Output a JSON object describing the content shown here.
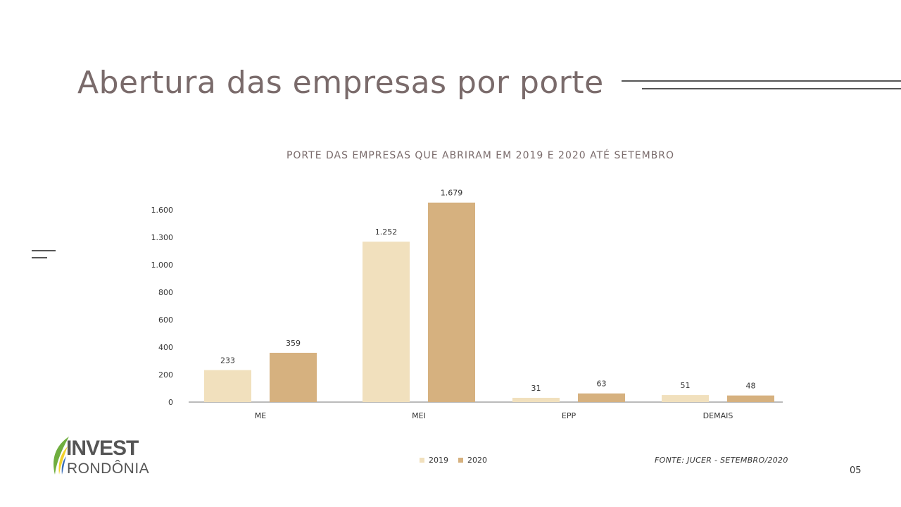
{
  "slide": {
    "title": "Abertura das empresas por porte",
    "page_number": "05",
    "source": "FONTE: JUCER - SETEMBRO/2020"
  },
  "logo": {
    "line1": "INVEST",
    "line2": "RONDÔNIA"
  },
  "colors": {
    "series_2019": "#f1e0bd",
    "series_2020": "#d6b17f",
    "title": "#7a6b6b"
  },
  "chart_data": {
    "type": "bar",
    "title": "PORTE DAS EMPRESAS QUE ABRIRAM EM 2019 E 2020 ATÉ SETEMBRO",
    "categories": [
      "ME",
      "MEI",
      "EPP",
      "DEMAIS"
    ],
    "yticks": [
      0,
      200,
      400,
      600,
      800,
      1000,
      1300,
      1600
    ],
    "ytick_labels": [
      "0",
      "200",
      "400",
      "600",
      "800",
      "1.000",
      "1.300",
      "1.600"
    ],
    "series": [
      {
        "name": "2019",
        "values": [
          233,
          1252,
          31,
          51
        ],
        "labels": [
          "233",
          "1.252",
          "31",
          "51"
        ],
        "color": "#f1e0bd"
      },
      {
        "name": "2020",
        "values": [
          359,
          1679,
          63,
          48
        ],
        "labels": [
          "359",
          "1.679",
          "63",
          "48"
        ],
        "color": "#d6b17f"
      }
    ],
    "legend": "bottom",
    "grid": false
  }
}
